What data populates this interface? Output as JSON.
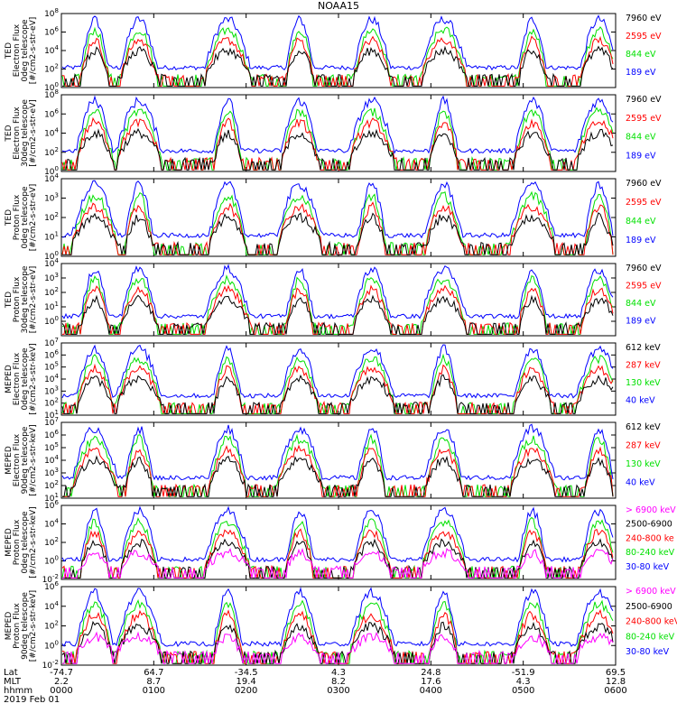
{
  "title": "NOAA15",
  "date_label": "2019 Feb 01",
  "colors": {
    "blue": "#0000ff",
    "red": "#ff0000",
    "green": "#00e000",
    "black": "#000000",
    "magenta": "#ff00ff"
  },
  "footer": {
    "row_labels": [
      "Lat",
      "MLT",
      "hhmm"
    ],
    "ticks": [
      {
        "time": "0000",
        "lat": "-74.7",
        "mlt": "2.2"
      },
      {
        "time": "0100",
        "lat": "64.7",
        "mlt": "8.7"
      },
      {
        "time": "0200",
        "lat": "-34.5",
        "mlt": "19.4"
      },
      {
        "time": "0300",
        "lat": "4.3",
        "mlt": "8.2"
      },
      {
        "time": "0400",
        "lat": "24.8",
        "mlt": "17.6"
      },
      {
        "time": "0500",
        "lat": "-51.9",
        "mlt": "4.3"
      },
      {
        "time": "0600",
        "lat": "69.5",
        "mlt": "12.8"
      }
    ]
  },
  "chart_data": [
    {
      "type": "line",
      "ylog": true,
      "ylim_exp": [
        0,
        8
      ],
      "tick_exps": [
        0,
        2,
        4,
        6,
        8
      ],
      "ylabel": [
        "TED",
        "Electron Flux",
        "0deg telescope",
        "[#/cm2-s-str-eV]"
      ],
      "legend": [
        {
          "label": "7960 eV",
          "color": "#000000"
        },
        {
          "label": "2595 eV",
          "color": "#ff0000"
        },
        {
          "label": "844 eV",
          "color": "#00e000"
        },
        {
          "label": "189 eV",
          "color": "#0000ff"
        }
      ]
    },
    {
      "type": "line",
      "ylog": true,
      "ylim_exp": [
        0,
        8
      ],
      "tick_exps": [
        0,
        2,
        4,
        6,
        8
      ],
      "ylabel": [
        "TED",
        "Electron Flux",
        "30deg telescope",
        "[#/cm2-s-str-eV]"
      ],
      "legend": [
        {
          "label": "7960 eV",
          "color": "#000000"
        },
        {
          "label": "2595 eV",
          "color": "#ff0000"
        },
        {
          "label": "844 eV",
          "color": "#00e000"
        },
        {
          "label": "189 eV",
          "color": "#0000ff"
        }
      ]
    },
    {
      "type": "line",
      "ylog": true,
      "ylim_exp": [
        0,
        4
      ],
      "tick_exps": [
        0,
        1,
        2,
        3,
        4
      ],
      "ylabel": [
        "TED",
        "Proton Flux",
        "0deg telescope",
        "[#/cm2-s-str-eV]"
      ],
      "legend": [
        {
          "label": "7960 eV",
          "color": "#000000"
        },
        {
          "label": "2595 eV",
          "color": "#ff0000"
        },
        {
          "label": "844 eV",
          "color": "#00e000"
        },
        {
          "label": "189 eV",
          "color": "#0000ff"
        }
      ]
    },
    {
      "type": "line",
      "ylog": true,
      "ylim_exp": [
        -1,
        4
      ],
      "tick_exps": [
        0,
        1,
        2,
        3,
        4
      ],
      "ylabel": [
        "TED",
        "Proton Flux",
        "30deg telescope",
        "[#/cm2-s-str-eV]"
      ],
      "legend": [
        {
          "label": "7960 eV",
          "color": "#000000"
        },
        {
          "label": "2595 eV",
          "color": "#ff0000"
        },
        {
          "label": "844 eV",
          "color": "#00e000"
        },
        {
          "label": "189 eV",
          "color": "#0000ff"
        }
      ]
    },
    {
      "type": "line",
      "ylog": true,
      "ylim_exp": [
        1,
        7
      ],
      "tick_exps": [
        1,
        2,
        3,
        4,
        5,
        6,
        7
      ],
      "ylabel": [
        "MEPED",
        "Electron Flux",
        "0deg telescope",
        "[#/cm2-s-str-keV]"
      ],
      "legend": [
        {
          "label": "612 keV",
          "color": "#000000"
        },
        {
          "label": "287 keV",
          "color": "#ff0000"
        },
        {
          "label": "130 keV",
          "color": "#00e000"
        },
        {
          "label": "40 keV",
          "color": "#0000ff"
        }
      ]
    },
    {
      "type": "line",
      "ylog": true,
      "ylim_exp": [
        1,
        7
      ],
      "tick_exps": [
        1,
        2,
        3,
        4,
        5,
        6,
        7
      ],
      "ylabel": [
        "MEPED",
        "Electron Flux",
        "90deg telescope",
        "[#/cm2-s-str-keV]"
      ],
      "legend": [
        {
          "label": "612 keV",
          "color": "#000000"
        },
        {
          "label": "287 keV",
          "color": "#ff0000"
        },
        {
          "label": "130 keV",
          "color": "#00e000"
        },
        {
          "label": "40 keV",
          "color": "#0000ff"
        }
      ]
    },
    {
      "type": "line",
      "ylog": true,
      "ylim_exp": [
        -2,
        6
      ],
      "tick_exps": [
        -2,
        0,
        2,
        4,
        6
      ],
      "ylabel": [
        "MEPED",
        "Proton Flux",
        "0deg telescope",
        "[#/cm2-s-str-keV]"
      ],
      "legend": [
        {
          "label": "> 6900 keV",
          "color": "#ff00ff"
        },
        {
          "label": "2500-6900",
          "color": "#000000"
        },
        {
          "label": "240-800 ke",
          "color": "#ff0000"
        },
        {
          "label": "80-240 keV",
          "color": "#00e000"
        },
        {
          "label": "30-80 keV",
          "color": "#0000ff"
        }
      ]
    },
    {
      "type": "line",
      "ylog": true,
      "ylim_exp": [
        -2,
        6
      ],
      "tick_exps": [
        -2,
        0,
        2,
        4,
        6
      ],
      "ylabel": [
        "MEPED",
        "Proton Flux",
        "90deg telescope",
        "[#/cm2-s-str-keV]"
      ],
      "legend": [
        {
          "label": "> 6900 keV",
          "color": "#ff00ff"
        },
        {
          "label": "2500-6900",
          "color": "#000000"
        },
        {
          "label": "240-800 keV",
          "color": "#ff0000"
        },
        {
          "label": "80-240 keV",
          "color": "#00e000"
        },
        {
          "label": "30-80 keV",
          "color": "#0000ff"
        }
      ]
    }
  ]
}
